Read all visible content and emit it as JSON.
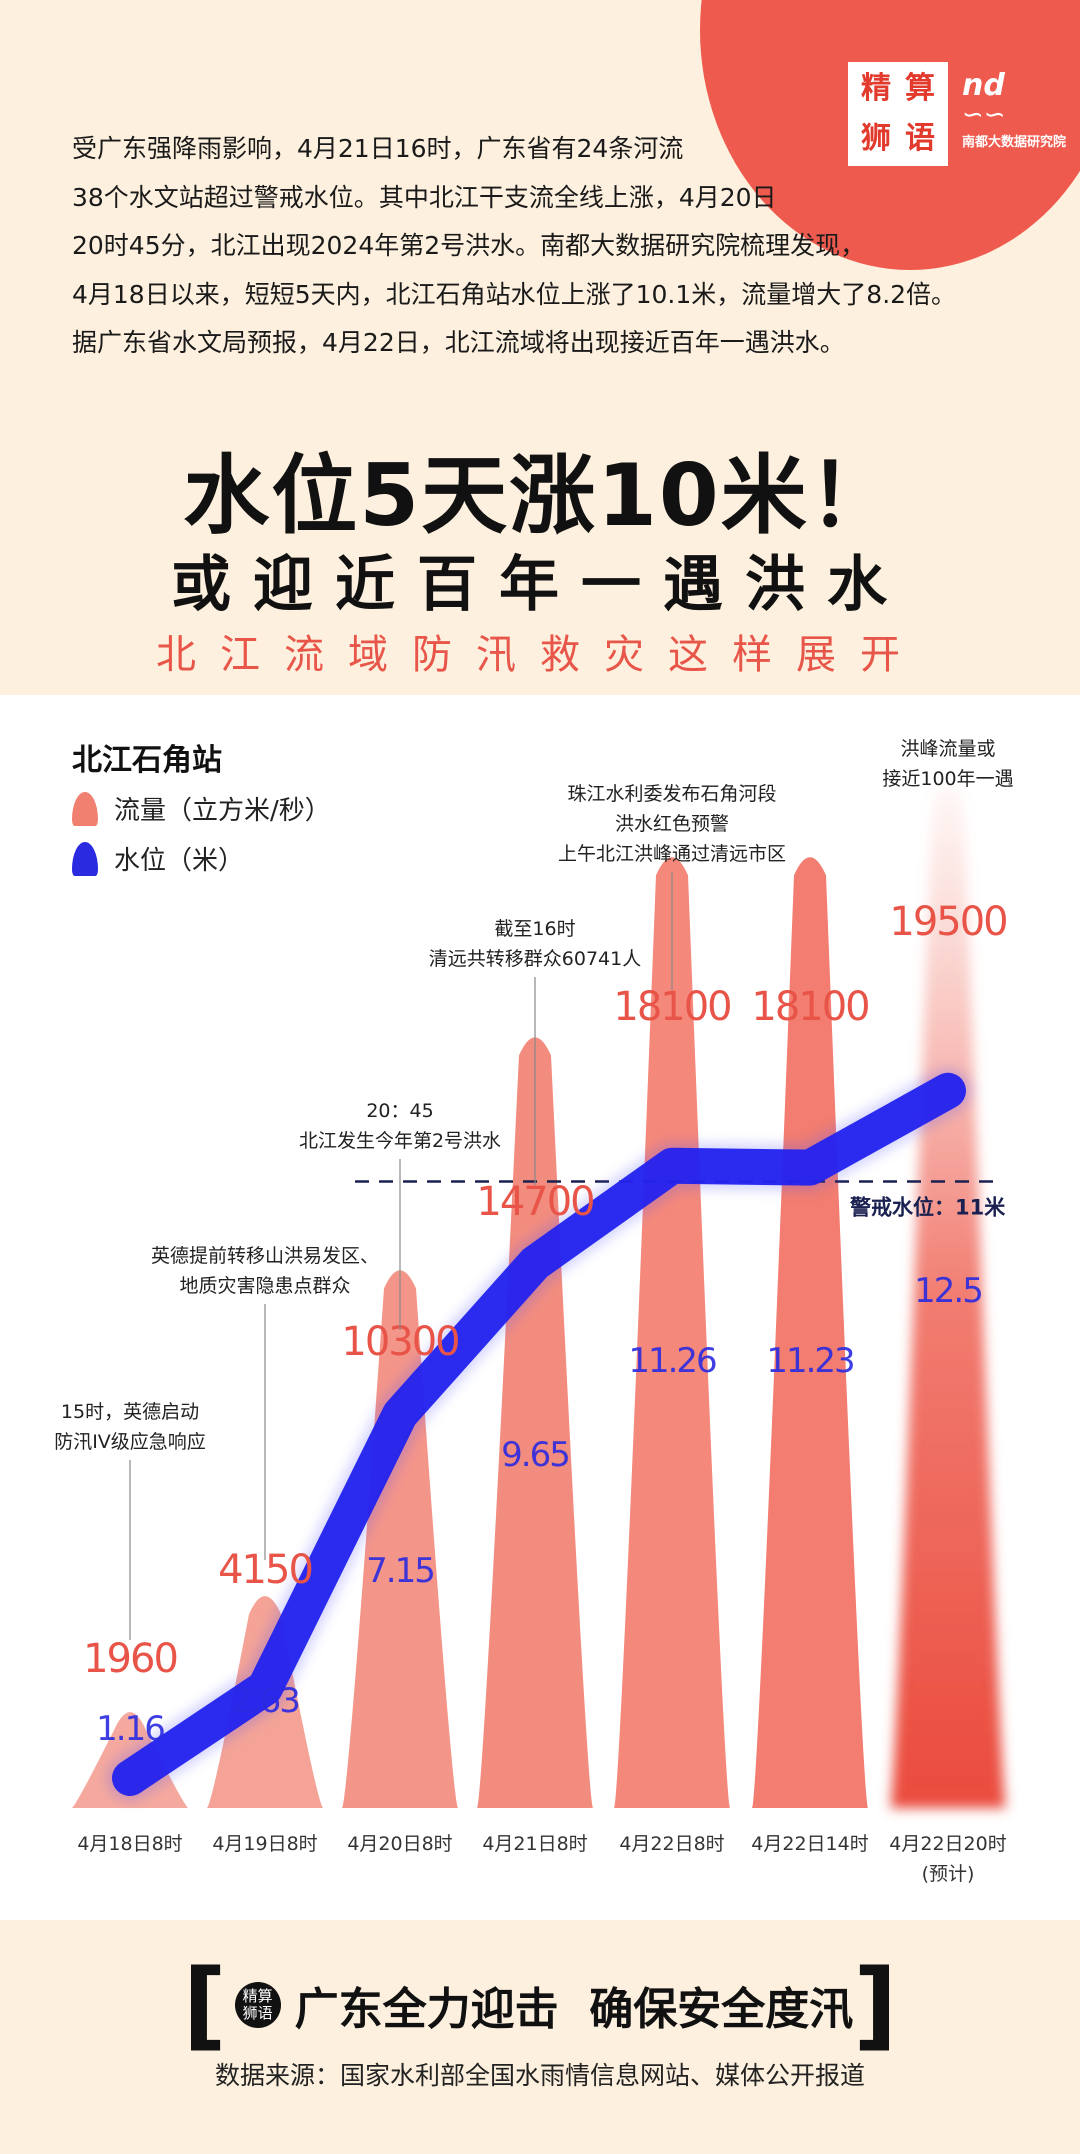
{
  "header": {
    "intro_lines": [
      "受广东强降雨影响，4月21日16时，广东省有24条河流",
      "38个水文站超过警戒水位。其中北江干支流全线上涨，4月20日",
      "20时45分，北江出现2024年第2号洪水。南都大数据研究院梳理发现，",
      "4月18日以来，短短5天内，北江石角站水位上涨了10.1米，流量增大了8.2倍。",
      "据广东省水文局预报，4月22日，北江流域将出现接近百年一遇洪水。"
    ],
    "title_line1": "水位5天涨10米！",
    "title_line2": "或迎近百年一遇洪水",
    "subtitle": "北江流域防汛救灾这样展开",
    "logo_left_chars": [
      "精",
      "算",
      "狮",
      "语"
    ],
    "logo_right": {
      "mark": "nd",
      "name": "南都大数据研究院"
    }
  },
  "chart_data": {
    "type": "bar",
    "station": "北江石角站",
    "categories": [
      "4月18日8时",
      "4月19日8时",
      "4月20日8时",
      "4月21日8时",
      "4月22日8时",
      "4月22日14时",
      "4月22日20时\n(预计)"
    ],
    "series": [
      {
        "name": "流量（立方米/秒）",
        "kind": "cone",
        "color": "#f08070",
        "values": [
          1960,
          4150,
          10300,
          14700,
          18100,
          18100,
          19500
        ]
      },
      {
        "name": "水位（米）",
        "kind": "line",
        "color": "#2a2ae0",
        "values": [
          1.16,
          2.63,
          7.15,
          9.65,
          11.26,
          11.23,
          12.5
        ]
      }
    ],
    "flow_labels": [
      "1960",
      "4150",
      "10300",
      "14700",
      "18100",
      "18100",
      "19500"
    ],
    "level_labels": [
      "1.16",
      "2.63",
      "7.15",
      "9.65",
      "11.26",
      "11.23",
      "12.5"
    ],
    "level_ylim": [
      0,
      14
    ],
    "flow_ylim": [
      0,
      21000
    ],
    "warning": {
      "value": 11,
      "label": "警戒水位：11米"
    },
    "annotations": [
      {
        "index": 0,
        "lines": [
          "15时，英德启动",
          "防汛IV级应急响应"
        ]
      },
      {
        "index": 1,
        "lines": [
          "英德提前转移山洪易发区、",
          "地质灾害隐患点群众"
        ]
      },
      {
        "index": 2,
        "lines": [
          "20：45",
          "北江发生今年第2号洪水"
        ]
      },
      {
        "index": 3,
        "lines": [
          "截至16时",
          "清远共转移群众60741人"
        ]
      },
      {
        "index": 4,
        "lines": [
          "珠江水利委发布石角河段",
          "洪水红色预警",
          "上午北江洪峰通过清远市区"
        ]
      },
      {
        "index": 6,
        "lines": [
          "洪峰流量或",
          "接近100年一遇"
        ]
      }
    ],
    "grid": false,
    "legend": "top-left"
  },
  "footer": {
    "badge_lines": [
      "精算",
      "狮语"
    ],
    "slogan": "广东全力迎击  确保安全度汛",
    "source": "数据来源：国家水利部全国水雨情信息网站、媒体公开报道"
  }
}
